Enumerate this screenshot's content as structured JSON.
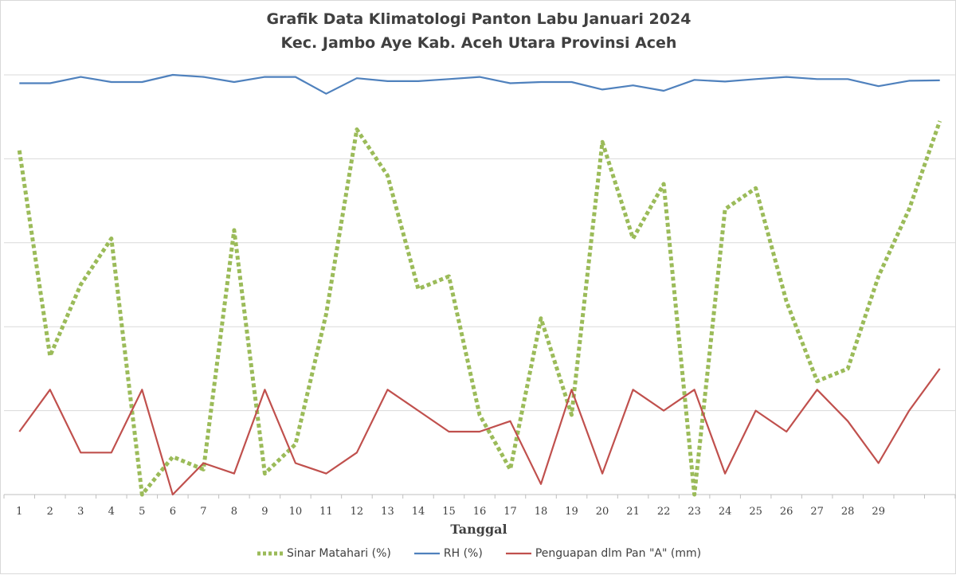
{
  "chart_data": {
    "type": "line",
    "title": "Grafik Data Klimatologi Panton Labu  Januari  2024",
    "subtitle": "Kec. Jambo Aye Kab. Aceh Utara Provinsi Aceh",
    "xlabel": "Tanggal",
    "categories": [
      "1",
      "2",
      "3",
      "4",
      "5",
      "6",
      "7",
      "8",
      "9",
      "10",
      "11",
      "12",
      "13",
      "14",
      "15",
      "16",
      "17",
      "18",
      "19",
      "20",
      "21",
      "22",
      "23",
      "24",
      "25",
      "26",
      "27",
      "28",
      "29",
      "",
      ""
    ],
    "ylim": [
      0,
      100
    ],
    "grid": true,
    "legend_position": "bottom",
    "series": [
      {
        "name": "Sinar Matahari (%)",
        "color": "#9bbb59",
        "style": "dotted",
        "values": [
          82,
          33,
          50,
          61,
          0,
          9,
          6,
          63,
          5,
          12,
          43,
          87,
          76,
          49,
          52,
          19,
          6,
          42,
          19,
          84,
          61,
          74,
          0,
          68,
          73,
          46,
          27,
          30,
          52,
          68,
          89
        ]
      },
      {
        "name": "RH (%)",
        "color": "#4f81bd",
        "style": "solid",
        "values": [
          98,
          98,
          99.5,
          98.3,
          98.3,
          100,
          99.5,
          98.3,
          99.5,
          99.5,
          95.5,
          99.2,
          98.5,
          98.5,
          99,
          99.5,
          98,
          98.3,
          98.3,
          96.5,
          97.5,
          96.2,
          98.8,
          98.4,
          99,
          99.5,
          99,
          99,
          97.3,
          98.6,
          98.7
        ]
      },
      {
        "name": "Penguapan dlm Pan \"A\" (mm)",
        "color": "#c0504d",
        "style": "solid",
        "values": [
          15,
          25,
          10,
          10,
          25,
          0,
          7.5,
          5,
          25,
          7.5,
          5,
          10,
          25,
          20,
          15,
          15,
          17.5,
          2.5,
          25,
          5,
          25,
          20,
          25,
          5,
          20,
          15,
          25,
          17.5,
          7.5,
          20,
          30
        ]
      }
    ]
  }
}
